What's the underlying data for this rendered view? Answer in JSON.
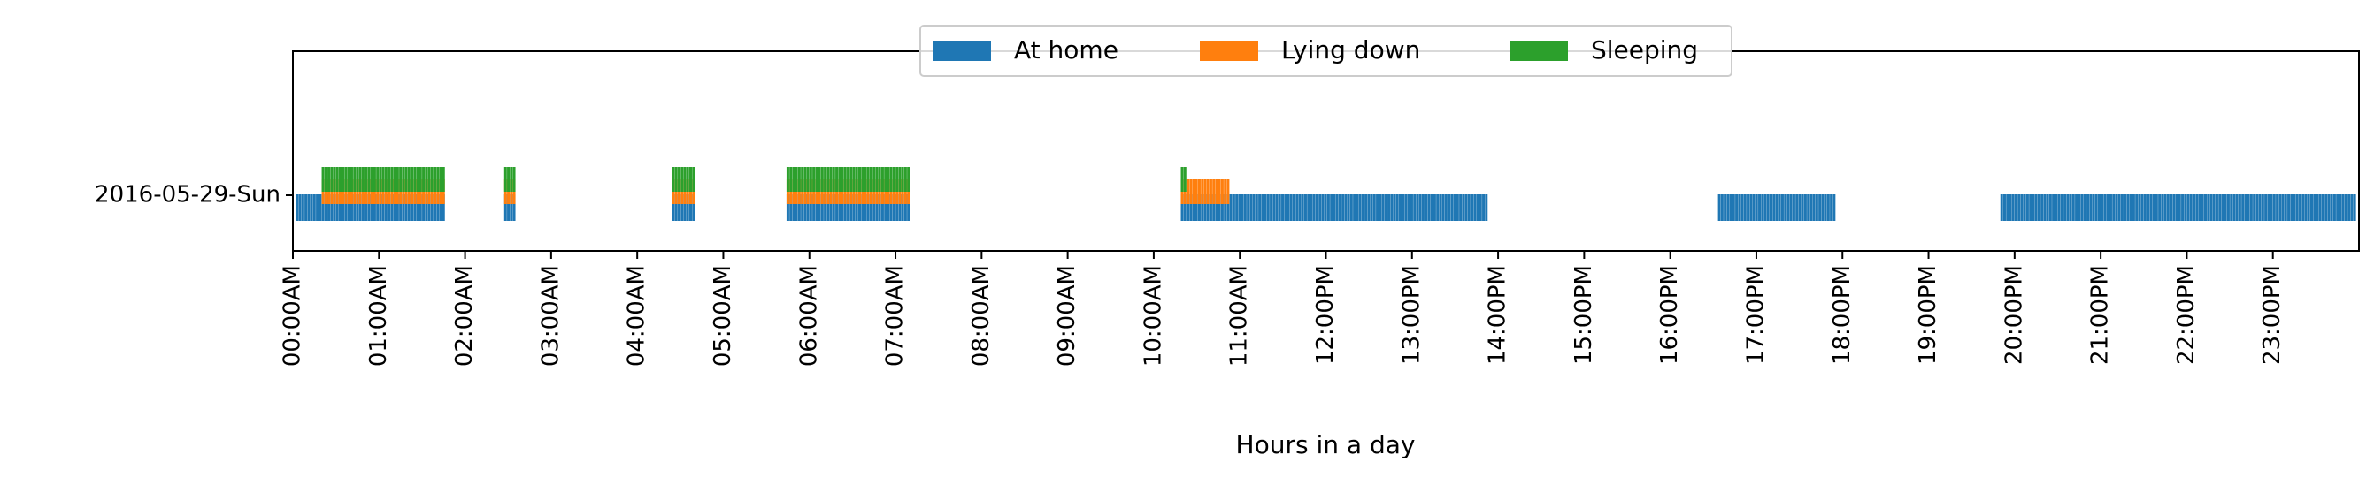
{
  "chart_data": {
    "type": "event-raster",
    "category": "2016-05-29-Sun",
    "xlabel": "Hours in a day",
    "xlim": [
      0,
      24
    ],
    "x_ticks": [
      "00:00AM",
      "01:00AM",
      "02:00AM",
      "03:00AM",
      "04:00AM",
      "05:00AM",
      "06:00AM",
      "07:00AM",
      "08:00AM",
      "09:00AM",
      "10:00AM",
      "11:00AM",
      "12:00PM",
      "13:00PM",
      "14:00PM",
      "15:00PM",
      "16:00PM",
      "17:00PM",
      "18:00PM",
      "19:00PM",
      "20:00PM",
      "21:00PM",
      "22:00PM",
      "23:00PM"
    ],
    "legend_position": "top-center",
    "grid": false,
    "interval_minutes": 2,
    "series": [
      {
        "name": "At home",
        "color": "#1f77b4",
        "segments": [
          [
            0.05,
            1.75
          ],
          [
            2.47,
            2.57
          ],
          [
            4.42,
            4.67
          ],
          [
            5.75,
            7.17
          ],
          [
            10.33,
            13.87
          ],
          [
            16.57,
            17.93
          ],
          [
            19.85,
            23.98
          ]
        ]
      },
      {
        "name": "Lying down",
        "color": "#ff7f0e",
        "segments": [
          [
            0.35,
            1.75
          ],
          [
            2.47,
            2.57
          ],
          [
            4.42,
            4.67
          ],
          [
            5.75,
            7.17
          ],
          [
            10.33,
            10.87
          ]
        ]
      },
      {
        "name": "Sleeping",
        "color": "#2ca02c",
        "segments": [
          [
            0.35,
            1.75
          ],
          [
            2.47,
            2.57
          ],
          [
            4.42,
            4.67
          ],
          [
            5.75,
            7.17
          ],
          [
            10.33,
            10.37
          ]
        ]
      }
    ]
  }
}
